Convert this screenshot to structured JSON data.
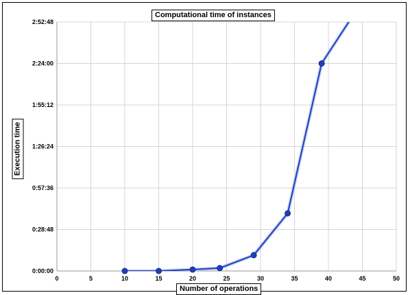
{
  "chart_data": {
    "type": "line",
    "title": "Computational time of instances",
    "xlabel": "Number of operations",
    "ylabel": "Execution time",
    "xlim": [
      0,
      50
    ],
    "ylim": [
      "0:00:00",
      "2:52:48"
    ],
    "x_ticks": [
      "0",
      "5",
      "10",
      "15",
      "20",
      "25",
      "30",
      "35",
      "40",
      "45",
      "50"
    ],
    "y_ticks": [
      "0:00:00",
      "0:28:48",
      "0:57:36",
      "1:26:24",
      "1:55:12",
      "2:24:00",
      "2:52:48"
    ],
    "grid": true,
    "legend": "none",
    "series": [
      {
        "color": "#1f3fbf",
        "x": [
          10,
          15,
          20,
          24,
          29,
          34,
          39,
          43
        ],
        "y": [
          "0:00:00",
          "0:00:00",
          "0:01:00",
          "0:02:00",
          "0:11:00",
          "0:40:00",
          "2:24:00",
          "2:52:48"
        ]
      }
    ]
  }
}
